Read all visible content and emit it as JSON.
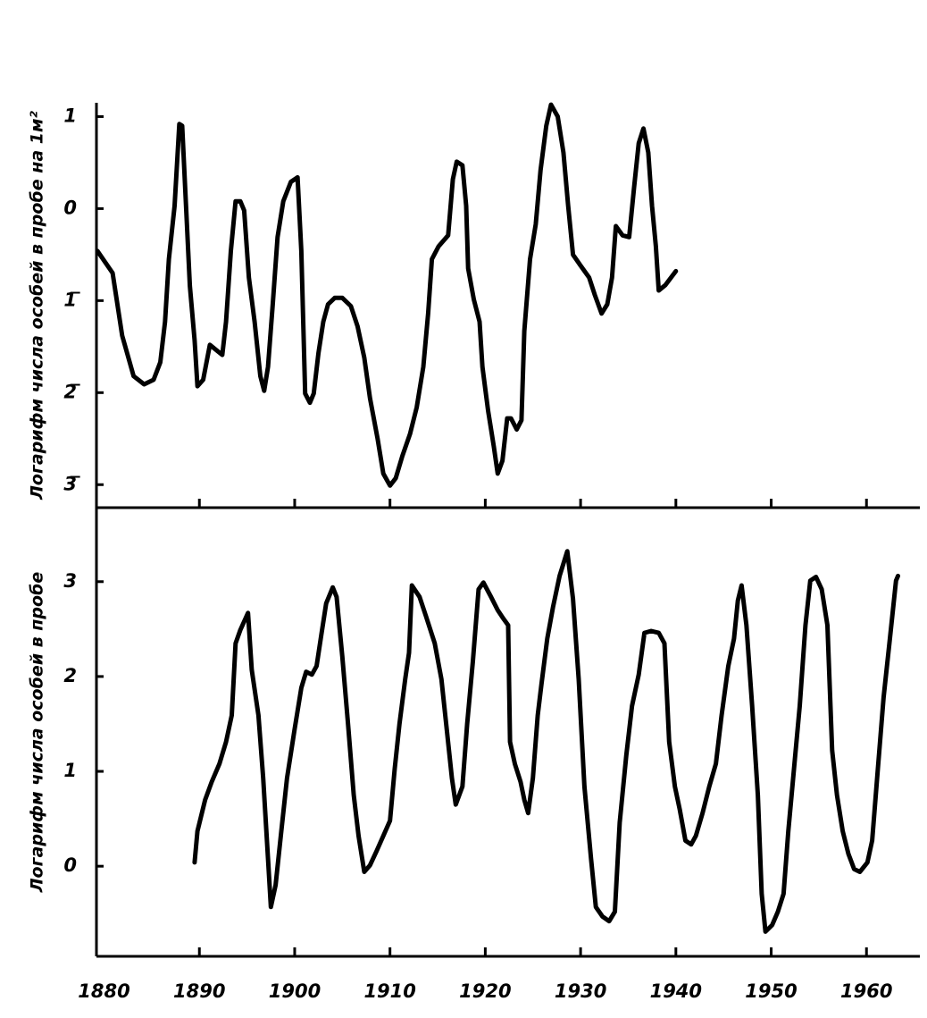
{
  "chart_data": [
    {
      "type": "line",
      "ylabel": "Логарифм числа особей в пробе на 1м²",
      "color": "#000000",
      "xlim": [
        1879.2,
        1965.6
      ],
      "ylim": [
        -3.25,
        1.15
      ],
      "yticks": [
        1,
        0,
        {
          "value": -1,
          "label": "1̅"
        },
        {
          "value": -2,
          "label": "2̅"
        },
        {
          "value": -3,
          "label": "3̅"
        }
      ],
      "x": [
        1879.3,
        1880.9,
        1881.9,
        1883.1,
        1884.2,
        1885.2,
        1885.9,
        1886.4,
        1886.8,
        1887.4,
        1887.9,
        1888.2,
        1888.6,
        1889.0,
        1889.5,
        1889.8,
        1890.4,
        1891.1,
        1891.8,
        1892.4,
        1892.8,
        1893.3,
        1893.8,
        1894.3,
        1894.7,
        1895.2,
        1895.8,
        1896.4,
        1896.8,
        1897.2,
        1897.7,
        1898.2,
        1898.8,
        1899.6,
        1900.3,
        1900.7,
        1901.1,
        1901.6,
        1902.0,
        1902.5,
        1903.0,
        1903.5,
        1904.2,
        1905.0,
        1905.9,
        1906.6,
        1907.3,
        1907.9,
        1908.7,
        1909.3,
        1910.0,
        1910.6,
        1911.3,
        1912.1,
        1912.8,
        1913.5,
        1914.0,
        1914.4,
        1915.1,
        1916.1,
        1916.6,
        1917.0,
        1917.6,
        1918.0,
        1918.2,
        1918.8,
        1919.4,
        1919.7,
        1920.3,
        1920.9,
        1921.3,
        1921.8,
        1922.3,
        1922.7,
        1923.3,
        1923.8,
        1924.1,
        1924.7,
        1925.3,
        1925.8,
        1926.4,
        1926.9,
        1927.6,
        1928.2,
        1928.7,
        1929.2,
        1930.0,
        1930.9,
        1931.5,
        1932.2,
        1932.8,
        1933.3,
        1933.7,
        1934.4,
        1935.1,
        1935.6,
        1936.1,
        1936.6,
        1937.1,
        1937.5,
        1937.9,
        1938.2,
        1938.9,
        1940.0
      ],
      "values": [
        -0.46,
        -0.7,
        -1.38,
        -1.82,
        -1.91,
        -1.86,
        -1.67,
        -1.23,
        -0.55,
        0.03,
        0.92,
        0.9,
        0.03,
        -0.84,
        -1.43,
        -1.93,
        -1.86,
        -1.48,
        -1.54,
        -1.59,
        -1.23,
        -0.46,
        0.08,
        0.08,
        -0.02,
        -0.75,
        -1.23,
        -1.82,
        -1.98,
        -1.72,
        -1.04,
        -0.31,
        0.08,
        0.29,
        0.34,
        -0.46,
        -2.01,
        -2.11,
        -2.01,
        -1.57,
        -1.23,
        -1.04,
        -0.97,
        -0.97,
        -1.06,
        -1.28,
        -1.62,
        -2.06,
        -2.5,
        -2.88,
        -3.01,
        -2.93,
        -2.69,
        -2.45,
        -2.16,
        -1.72,
        -1.14,
        -0.55,
        -0.41,
        -0.29,
        0.32,
        0.51,
        0.47,
        0.03,
        -0.65,
        -0.99,
        -1.23,
        -1.72,
        -2.2,
        -2.59,
        -2.88,
        -2.74,
        -2.28,
        -2.28,
        -2.4,
        -2.3,
        -1.33,
        -0.55,
        -0.17,
        0.42,
        0.9,
        1.13,
        1.0,
        0.61,
        0.03,
        -0.5,
        -0.62,
        -0.75,
        -0.94,
        -1.14,
        -1.04,
        -0.75,
        -0.19,
        -0.29,
        -0.31,
        0.22,
        0.71,
        0.87,
        0.61,
        0.03,
        -0.41,
        -0.89,
        -0.83,
        -0.68
      ]
    },
    {
      "type": "line",
      "ylabel": "Логарифм числа особей в пробе",
      "color": "#000000",
      "xlim": [
        1879.2,
        1965.6
      ],
      "ylim": [
        -0.95,
        3.78
      ],
      "xticks": [
        1880,
        1890,
        1900,
        1910,
        1920,
        1930,
        1940,
        1950,
        1960
      ],
      "yticks": [
        3,
        2,
        1,
        0
      ],
      "x": [
        1889.5,
        1889.8,
        1890.6,
        1891.3,
        1892.1,
        1892.8,
        1893.4,
        1893.8,
        1894.3,
        1895.1,
        1895.5,
        1896.2,
        1896.7,
        1897.2,
        1897.5,
        1898.0,
        1898.6,
        1899.2,
        1900.0,
        1900.7,
        1901.2,
        1901.8,
        1902.3,
        1902.8,
        1903.3,
        1904.0,
        1904.4,
        1905.0,
        1905.6,
        1906.2,
        1906.7,
        1907.3,
        1907.9,
        1908.6,
        1909.3,
        1910.0,
        1910.5,
        1911.0,
        1911.6,
        1912.0,
        1912.3,
        1913.1,
        1913.8,
        1914.7,
        1915.4,
        1915.9,
        1916.5,
        1916.9,
        1917.6,
        1918.1,
        1918.7,
        1919.3,
        1919.8,
        1920.6,
        1921.3,
        1921.9,
        1922.4,
        1922.6,
        1923.1,
        1923.7,
        1924.1,
        1924.5,
        1925.0,
        1925.5,
        1925.9,
        1926.5,
        1927.1,
        1927.8,
        1928.6,
        1929.2,
        1929.8,
        1930.4,
        1931.1,
        1931.6,
        1932.3,
        1933.0,
        1933.6,
        1934.1,
        1934.8,
        1935.4,
        1936.1,
        1936.7,
        1937.4,
        1938.2,
        1938.8,
        1939.3,
        1939.9,
        1940.4,
        1941.0,
        1941.6,
        1942.1,
        1942.8,
        1943.5,
        1944.2,
        1944.8,
        1945.5,
        1946.1,
        1946.5,
        1946.9,
        1947.4,
        1948.0,
        1948.6,
        1949.0,
        1949.4,
        1950.1,
        1950.7,
        1951.3,
        1951.8,
        1952.4,
        1953.0,
        1953.6,
        1954.1,
        1954.7,
        1955.3,
        1955.9,
        1956.4,
        1956.9,
        1957.5,
        1958.1,
        1958.7,
        1959.3,
        1960.1,
        1960.6,
        1961.2,
        1961.8,
        1962.4,
        1963.1,
        1963.3
      ],
      "values": [
        0.04,
        0.37,
        0.7,
        0.89,
        1.08,
        1.31,
        1.59,
        2.35,
        2.49,
        2.67,
        2.07,
        1.59,
        0.93,
        0.08,
        -0.43,
        -0.2,
        0.37,
        0.93,
        1.45,
        1.88,
        2.05,
        2.02,
        2.11,
        2.44,
        2.77,
        2.94,
        2.84,
        2.21,
        1.5,
        0.75,
        0.32,
        -0.06,
        0.01,
        0.16,
        0.32,
        0.48,
        1.03,
        1.5,
        1.97,
        2.25,
        2.96,
        2.84,
        2.63,
        2.35,
        1.97,
        1.5,
        0.93,
        0.65,
        0.84,
        1.5,
        2.16,
        2.92,
        2.99,
        2.84,
        2.7,
        2.61,
        2.54,
        1.31,
        1.08,
        0.89,
        0.7,
        0.56,
        0.93,
        1.59,
        1.92,
        2.4,
        2.73,
        3.06,
        3.32,
        2.82,
        1.97,
        0.84,
        0.08,
        -0.43,
        -0.53,
        -0.58,
        -0.48,
        0.46,
        1.17,
        1.69,
        2.02,
        2.46,
        2.48,
        2.46,
        2.35,
        1.31,
        0.84,
        0.6,
        0.27,
        0.23,
        0.32,
        0.56,
        0.84,
        1.08,
        1.59,
        2.11,
        2.4,
        2.8,
        2.96,
        2.54,
        1.69,
        0.75,
        -0.29,
        -0.69,
        -0.62,
        -0.48,
        -0.29,
        0.37,
        1.03,
        1.69,
        2.54,
        3.01,
        3.05,
        2.92,
        2.54,
        1.22,
        0.75,
        0.37,
        0.13,
        -0.03,
        -0.06,
        0.04,
        0.27,
        1.03,
        1.78,
        2.35,
        3.01,
        3.06
      ]
    }
  ]
}
